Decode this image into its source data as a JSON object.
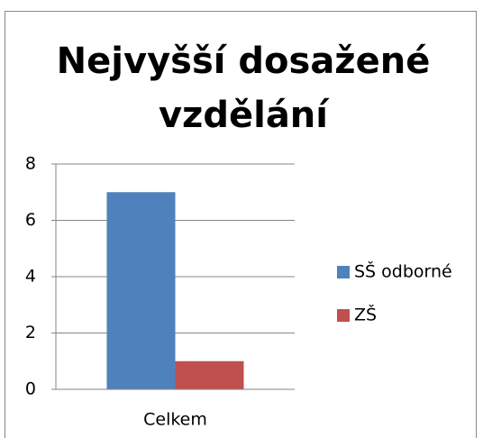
{
  "chart_data": {
    "type": "bar",
    "title": "Nejvyšší dosažené vzdělání",
    "categories": [
      "Celkem"
    ],
    "series": [
      {
        "name": "SŠ odborné",
        "color": "#4f81bd",
        "values": [
          7
        ]
      },
      {
        "name": "ZŠ",
        "color": "#c0504d",
        "values": [
          1
        ]
      }
    ],
    "ylim": [
      0,
      8
    ],
    "yticks": [
      0,
      2,
      4,
      6,
      8
    ],
    "grid": true,
    "legend": "right"
  }
}
